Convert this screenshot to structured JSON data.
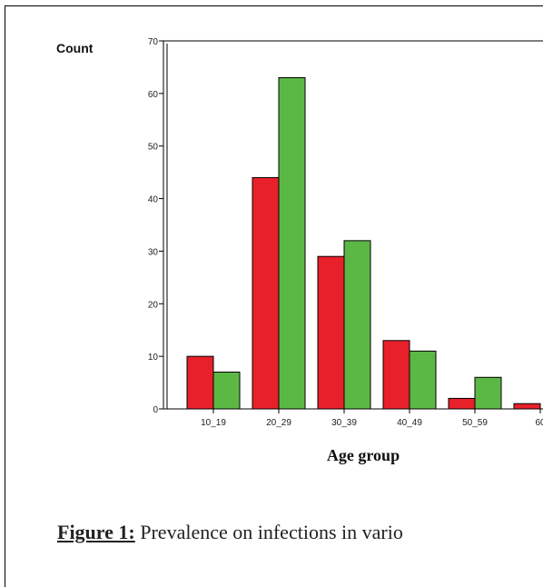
{
  "chart_data": {
    "type": "bar",
    "ylabel": "Count",
    "xlabel": "Age group",
    "categories": [
      "10_19",
      "20_29",
      "30_39",
      "40_49",
      "50_59",
      "60"
    ],
    "series": [
      {
        "values": [
          10,
          44,
          29,
          13,
          2,
          1
        ]
      },
      {
        "values": [
          7,
          63,
          32,
          11,
          6,
          0
        ]
      }
    ],
    "ylim": [
      0,
      70
    ],
    "yticks": [
      0,
      10,
      20,
      30,
      40,
      50,
      60,
      70
    ],
    "colors": [
      "#e8202a",
      "#5cb845"
    ],
    "grid": false,
    "legend": "none"
  },
  "caption": {
    "label": "Figure 1:",
    "text": " Prevalence on infections in vario"
  }
}
